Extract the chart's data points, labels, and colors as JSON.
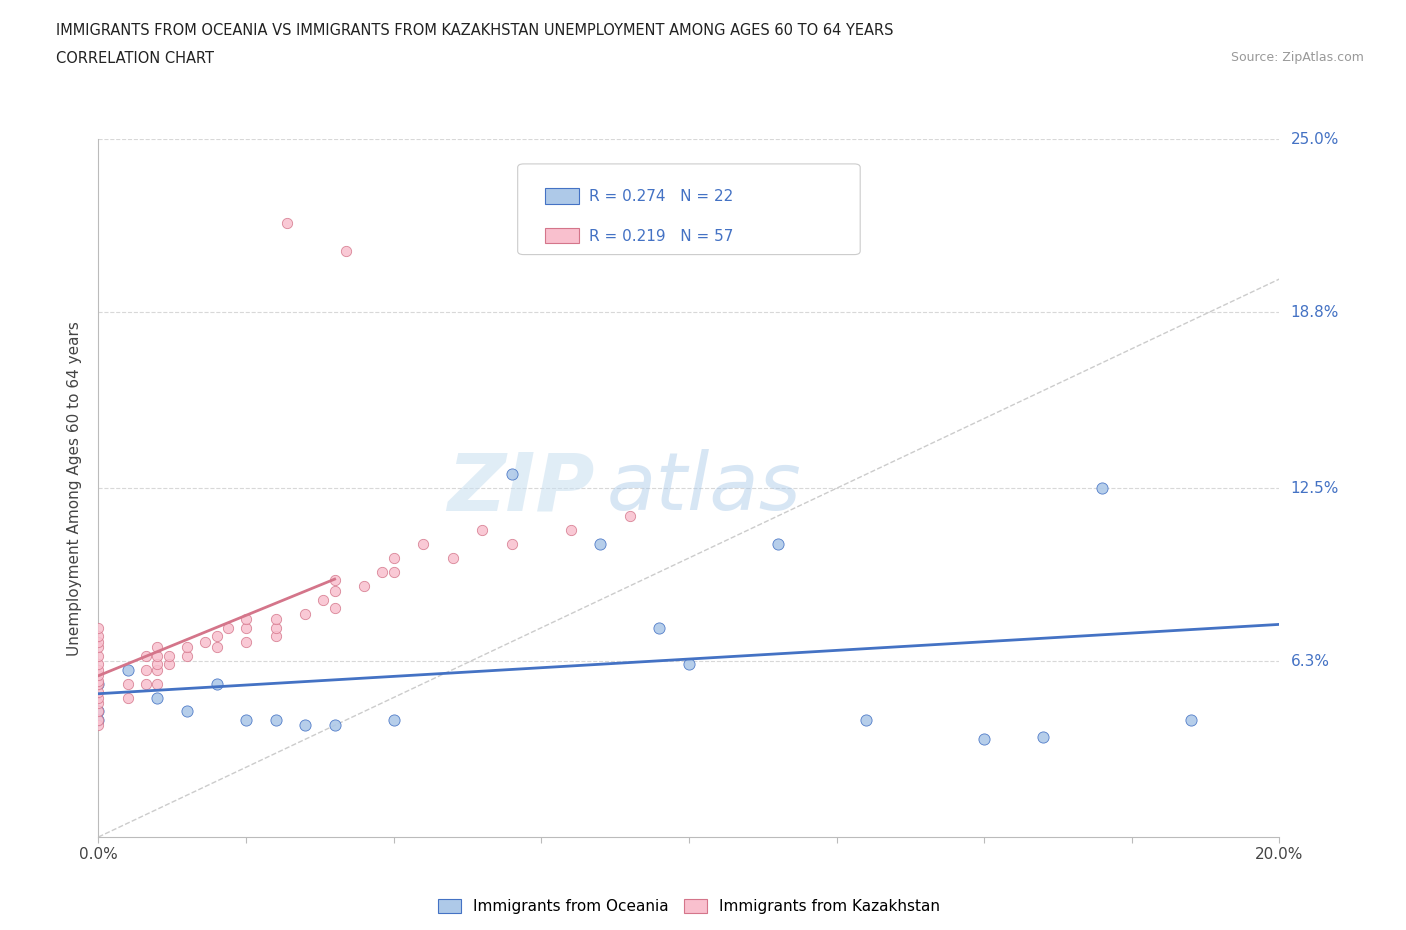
{
  "title_line1": "IMMIGRANTS FROM OCEANIA VS IMMIGRANTS FROM KAZAKHSTAN UNEMPLOYMENT AMONG AGES 60 TO 64 YEARS",
  "title_line2": "CORRELATION CHART",
  "source": "Source: ZipAtlas.com",
  "ylabel": "Unemployment Among Ages 60 to 64 years",
  "xlim": [
    0.0,
    0.2
  ],
  "ylim": [
    0.0,
    0.25
  ],
  "yticks": [
    0.063,
    0.125,
    0.188,
    0.25
  ],
  "ytick_labels": [
    "6.3%",
    "12.5%",
    "18.8%",
    "25.0%"
  ],
  "xticks": [
    0.0,
    0.025,
    0.05,
    0.075,
    0.1,
    0.125,
    0.15,
    0.175,
    0.2
  ],
  "xtick_labels": [
    "0.0%",
    "",
    "",
    "",
    "",
    "",
    "",
    "",
    "20.0%"
  ],
  "color_oceania": "#aec9e8",
  "color_kazakhstan": "#f9c0ce",
  "color_trend_oceania": "#4472c4",
  "color_trend_kazakhstan": "#d4758a",
  "color_diag": "#cccccc",
  "watermark_zip": "ZIP",
  "watermark_atlas": "atlas",
  "oceania_x": [
    0.0,
    0.0,
    0.0,
    0.005,
    0.01,
    0.015,
    0.02,
    0.025,
    0.03,
    0.035,
    0.04,
    0.05,
    0.07,
    0.085,
    0.095,
    0.1,
    0.115,
    0.13,
    0.15,
    0.16,
    0.17,
    0.185
  ],
  "oceania_y": [
    0.055,
    0.045,
    0.042,
    0.06,
    0.05,
    0.045,
    0.055,
    0.042,
    0.042,
    0.04,
    0.04,
    0.042,
    0.13,
    0.105,
    0.075,
    0.062,
    0.105,
    0.042,
    0.035,
    0.036,
    0.125,
    0.042
  ],
  "kazakhstan_x": [
    0.0,
    0.0,
    0.0,
    0.0,
    0.0,
    0.0,
    0.0,
    0.0,
    0.0,
    0.0,
    0.0,
    0.0,
    0.0,
    0.0,
    0.0,
    0.0,
    0.005,
    0.005,
    0.008,
    0.008,
    0.008,
    0.01,
    0.01,
    0.01,
    0.01,
    0.01,
    0.012,
    0.012,
    0.015,
    0.015,
    0.018,
    0.02,
    0.02,
    0.022,
    0.025,
    0.025,
    0.025,
    0.03,
    0.03,
    0.03,
    0.032,
    0.035,
    0.038,
    0.04,
    0.04,
    0.04,
    0.042,
    0.045,
    0.048,
    0.05,
    0.05,
    0.055,
    0.06,
    0.065,
    0.07,
    0.08,
    0.09
  ],
  "kazakhstan_y": [
    0.04,
    0.042,
    0.045,
    0.048,
    0.05,
    0.052,
    0.055,
    0.056,
    0.058,
    0.06,
    0.062,
    0.065,
    0.068,
    0.07,
    0.072,
    0.075,
    0.05,
    0.055,
    0.055,
    0.06,
    0.065,
    0.055,
    0.06,
    0.062,
    0.065,
    0.068,
    0.062,
    0.065,
    0.065,
    0.068,
    0.07,
    0.068,
    0.072,
    0.075,
    0.07,
    0.075,
    0.078,
    0.072,
    0.075,
    0.078,
    0.22,
    0.08,
    0.085,
    0.082,
    0.088,
    0.092,
    0.21,
    0.09,
    0.095,
    0.095,
    0.1,
    0.105,
    0.1,
    0.11,
    0.105,
    0.11,
    0.115
  ]
}
